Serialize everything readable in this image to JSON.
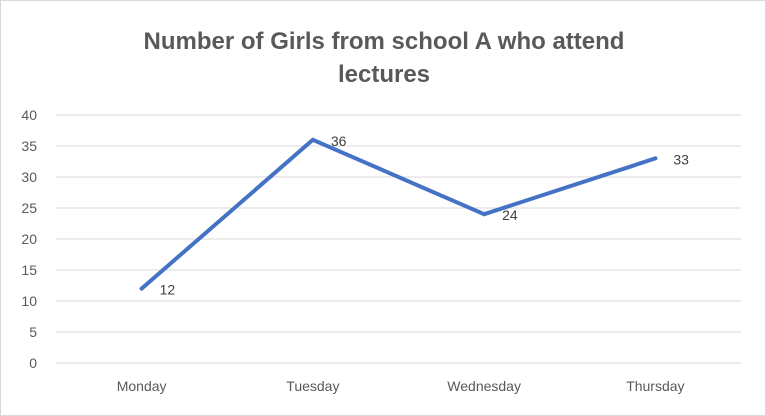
{
  "chart_data": {
    "type": "line",
    "title_lines": [
      "Number of Girls from school A who attend",
      "lectures"
    ],
    "categories": [
      "Monday",
      "Tuesday",
      "Wednesday",
      "Thursday"
    ],
    "series": [
      {
        "values": [
          12,
          36,
          24,
          33
        ]
      }
    ],
    "data_labels": [
      "12",
      "36",
      "24",
      "33"
    ],
    "ylim": [
      0,
      40
    ],
    "yticks": [
      "0",
      "5",
      "10",
      "15",
      "20",
      "25",
      "30",
      "35",
      "40"
    ],
    "grid": true,
    "legend": "none",
    "xlabel": "",
    "ylabel": ""
  },
  "colors": {
    "line": "#4472c4",
    "grid": "#d9d9d9",
    "text": "#595959"
  }
}
